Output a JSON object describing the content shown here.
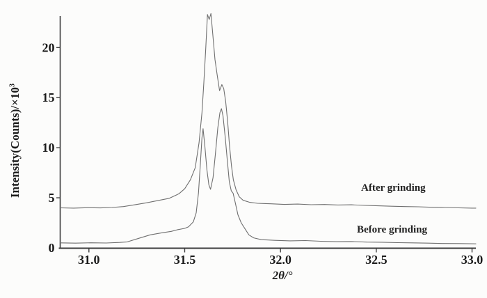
{
  "figure": {
    "background": "#fcfcfb",
    "axis_color": "#3d3d3d",
    "text_color": "#1b1b1b"
  },
  "labels": {
    "ylabel_main": "Intensity(Counts)/×10",
    "ylabel_sup": "3",
    "xlabel": "2θ/°"
  },
  "chart_data": {
    "type": "line",
    "title": "",
    "xlabel": "2θ/°",
    "ylabel": "Intensity(Counts)/×10³",
    "xlim": [
      30.85,
      33.02
    ],
    "ylim": [
      0,
      23.15
    ],
    "x_ticks": [
      31.0,
      31.5,
      32.0,
      32.5,
      33.0
    ],
    "x_tick_labels": [
      "31.0",
      "31.5",
      "32.0",
      "32.5",
      "33.0"
    ],
    "y_ticks": [
      0,
      5,
      10,
      15,
      20
    ],
    "y_tick_labels": [
      "0",
      "5",
      "10",
      "15",
      "20"
    ],
    "grid": false,
    "legend_position": "inline-annotations",
    "annotations": [
      {
        "text": "After grinding",
        "x": 32.58,
        "y": 5.8
      },
      {
        "text": "Before grinding",
        "x": 32.57,
        "y": 1.7
      }
    ],
    "series": [
      {
        "name": "After grinding",
        "color": "#6f6f6f",
        "points": [
          [
            30.85,
            4.0
          ],
          [
            30.92,
            3.97
          ],
          [
            30.99,
            4.01
          ],
          [
            31.06,
            3.99
          ],
          [
            31.12,
            4.03
          ],
          [
            31.18,
            4.12
          ],
          [
            31.24,
            4.3
          ],
          [
            31.3,
            4.5
          ],
          [
            31.36,
            4.72
          ],
          [
            31.42,
            4.95
          ],
          [
            31.47,
            5.4
          ],
          [
            31.5,
            5.9
          ],
          [
            31.53,
            6.8
          ],
          [
            31.555,
            8.0
          ],
          [
            31.575,
            10.5
          ],
          [
            31.59,
            13.5
          ],
          [
            31.6,
            16.5
          ],
          [
            31.61,
            20.0
          ],
          [
            31.619,
            23.3
          ],
          [
            31.628,
            22.8
          ],
          [
            31.637,
            23.4
          ],
          [
            31.647,
            21.2
          ],
          [
            31.658,
            18.8
          ],
          [
            31.67,
            17.2
          ],
          [
            31.682,
            15.7
          ],
          [
            31.694,
            16.3
          ],
          [
            31.704,
            15.9
          ],
          [
            31.714,
            14.6
          ],
          [
            31.724,
            12.6
          ],
          [
            31.734,
            10.2
          ],
          [
            31.744,
            8.2
          ],
          [
            31.754,
            6.8
          ],
          [
            31.768,
            5.8
          ],
          [
            31.785,
            5.1
          ],
          [
            31.805,
            4.75
          ],
          [
            31.84,
            4.55
          ],
          [
            31.88,
            4.45
          ],
          [
            31.95,
            4.4
          ],
          [
            32.02,
            4.34
          ],
          [
            32.09,
            4.37
          ],
          [
            32.16,
            4.31
          ],
          [
            32.23,
            4.33
          ],
          [
            32.3,
            4.28
          ],
          [
            32.37,
            4.3
          ],
          [
            32.44,
            4.24
          ],
          [
            32.51,
            4.2
          ],
          [
            32.58,
            4.16
          ],
          [
            32.65,
            4.12
          ],
          [
            32.72,
            4.1
          ],
          [
            32.79,
            4.05
          ],
          [
            32.86,
            4.03
          ],
          [
            32.93,
            4.0
          ],
          [
            33.0,
            3.97
          ],
          [
            33.02,
            3.97
          ]
        ]
      },
      {
        "name": "Before grinding",
        "color": "#6f6f6f",
        "points": [
          [
            30.85,
            0.5
          ],
          [
            30.93,
            0.47
          ],
          [
            31.01,
            0.51
          ],
          [
            31.09,
            0.49
          ],
          [
            31.16,
            0.54
          ],
          [
            31.2,
            0.6
          ],
          [
            31.26,
            0.95
          ],
          [
            31.32,
            1.3
          ],
          [
            31.38,
            1.5
          ],
          [
            31.43,
            1.65
          ],
          [
            31.46,
            1.8
          ],
          [
            31.5,
            1.95
          ],
          [
            31.52,
            2.1
          ],
          [
            31.545,
            2.6
          ],
          [
            31.56,
            3.5
          ],
          [
            31.572,
            5.5
          ],
          [
            31.582,
            8.5
          ],
          [
            31.59,
            11.0
          ],
          [
            31.596,
            11.9
          ],
          [
            31.605,
            10.2
          ],
          [
            31.616,
            7.8
          ],
          [
            31.626,
            6.3
          ],
          [
            31.635,
            5.85
          ],
          [
            31.648,
            7.0
          ],
          [
            31.66,
            9.3
          ],
          [
            31.673,
            12.0
          ],
          [
            31.684,
            13.5
          ],
          [
            31.692,
            13.9
          ],
          [
            31.7,
            13.2
          ],
          [
            31.712,
            11.0
          ],
          [
            31.723,
            8.6
          ],
          [
            31.733,
            6.6
          ],
          [
            31.743,
            5.7
          ],
          [
            31.753,
            5.45
          ],
          [
            31.764,
            4.5
          ],
          [
            31.778,
            3.3
          ],
          [
            31.795,
            2.5
          ],
          [
            31.815,
            1.9
          ],
          [
            31.835,
            1.3
          ],
          [
            31.86,
            1.0
          ],
          [
            31.9,
            0.82
          ],
          [
            31.97,
            0.75
          ],
          [
            32.05,
            0.7
          ],
          [
            32.13,
            0.73
          ],
          [
            32.21,
            0.66
          ],
          [
            32.29,
            0.62
          ],
          [
            32.37,
            0.63
          ],
          [
            32.45,
            0.58
          ],
          [
            32.53,
            0.56
          ],
          [
            32.61,
            0.52
          ],
          [
            32.69,
            0.5
          ],
          [
            32.77,
            0.47
          ],
          [
            32.85,
            0.44
          ],
          [
            32.93,
            0.43
          ],
          [
            33.02,
            0.4
          ]
        ]
      }
    ]
  }
}
